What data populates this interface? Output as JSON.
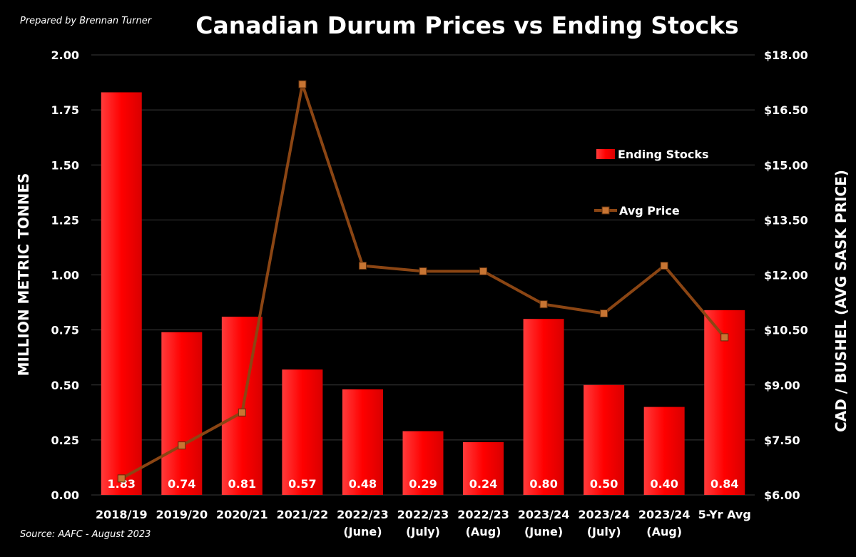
{
  "header": {
    "prepared_by": "Prepared by Brennan Turner",
    "title": "Canadian Durum Prices vs Ending Stocks"
  },
  "footer": {
    "source": "Source: AAFC - August 2023"
  },
  "colors": {
    "background": "#000000",
    "bar": "#ff0000",
    "line": "#8b4513",
    "marker": "#c87533",
    "grid": "#3a3a3a",
    "text": "#ffffff"
  },
  "chart_data": {
    "type": "bar",
    "title": "Canadian Durum Prices vs Ending Stocks",
    "categories": [
      [
        "2018/19"
      ],
      [
        "2019/20"
      ],
      [
        "2020/21"
      ],
      [
        "2021/22"
      ],
      [
        "2022/23",
        "(June)"
      ],
      [
        "2022/23",
        "(July)"
      ],
      [
        "2022/23",
        "(Aug)"
      ],
      [
        "2023/24",
        "(June)"
      ],
      [
        "2023/24",
        "(July)"
      ],
      [
        "2023/24",
        "(Aug)"
      ],
      [
        "5-Yr Avg"
      ]
    ],
    "series": [
      {
        "name": "Ending Stocks",
        "type": "bar",
        "axis": "left",
        "values": [
          1.83,
          0.74,
          0.81,
          0.57,
          0.48,
          0.29,
          0.24,
          0.8,
          0.5,
          0.4,
          0.84
        ],
        "labels": [
          "1.83",
          "0.74",
          "0.81",
          "0.57",
          "0.48",
          "0.29",
          "0.24",
          "0.80",
          "0.50",
          "0.40",
          "0.84"
        ]
      },
      {
        "name": "Avg Price",
        "type": "line",
        "axis": "right",
        "values": [
          6.45,
          7.35,
          8.25,
          17.2,
          12.25,
          12.1,
          12.1,
          11.2,
          10.95,
          12.25,
          10.3
        ]
      }
    ],
    "ylabel_left": "MILLION METRIC TONNES",
    "ylabel_right": "CAD / BUSHEL (AVG SASK PRICE)",
    "ylim_left": [
      0,
      2
    ],
    "ylim_right": [
      6,
      18
    ],
    "yticks_left": [
      "0.00",
      "0.25",
      "0.50",
      "0.75",
      "1.00",
      "1.25",
      "1.50",
      "1.75",
      "2.00"
    ],
    "yticks_right": [
      "$6.00",
      "$7.50",
      "$9.00",
      "$10.50",
      "$12.00",
      "$13.50",
      "$15.00",
      "$16.50",
      "$18.00"
    ],
    "grid": true,
    "legend_placement": "right"
  }
}
